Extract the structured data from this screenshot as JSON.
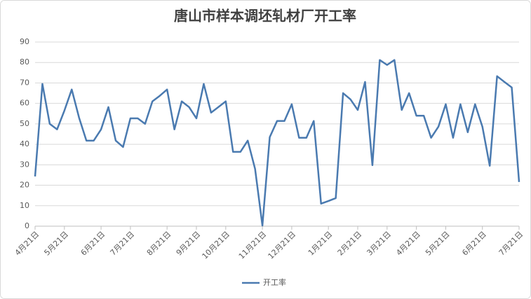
{
  "chart_data": {
    "type": "line",
    "title": "唐山市样本调坯轧材厂开工率",
    "categories": [
      "4月21日",
      null,
      null,
      null,
      "5月21日",
      null,
      null,
      null,
      null,
      "6月21日",
      null,
      null,
      null,
      "7月21日",
      null,
      null,
      null,
      null,
      "8月21日",
      null,
      null,
      null,
      "9月21日",
      null,
      null,
      null,
      "10月21日",
      null,
      null,
      null,
      null,
      "11月21日",
      null,
      null,
      null,
      "12月21日",
      null,
      null,
      null,
      null,
      "1月21日",
      null,
      null,
      null,
      "2月21日",
      null,
      null,
      null,
      "3月21日",
      null,
      null,
      null,
      "4月21日",
      null,
      null,
      null,
      "5月21日",
      null,
      null,
      null,
      null,
      "6月21日",
      null,
      null,
      null,
      null,
      "7月21日"
    ],
    "series": [
      {
        "name": "开工率",
        "color": "#4a7ab0",
        "values": [
          24.3,
          69.5,
          50,
          47.3,
          56.5,
          66.8,
          53,
          41.8,
          41.8,
          47.3,
          58.2,
          41.8,
          38.7,
          52.7,
          52.7,
          50,
          61,
          63.7,
          66.8,
          47.3,
          61,
          58.2,
          52.7,
          69.5,
          55.5,
          58.2,
          61,
          36.3,
          36.3,
          41.8,
          28,
          0.3,
          43.5,
          51.4,
          51.4,
          59.6,
          43.2,
          43.2,
          51.4,
          11,
          12.3,
          13.7,
          65,
          62,
          56.8,
          70.5,
          29.8,
          81.2,
          78.8,
          81.2,
          56.8,
          65,
          54,
          54,
          43.2,
          48.6,
          59.6,
          43.2,
          59.6,
          45.9,
          59.6,
          48.6,
          29.5,
          73.3,
          70.5,
          67.8,
          21.6
        ]
      }
    ],
    "ylim": [
      0,
      90
    ],
    "yticks": [
      0,
      10,
      20,
      30,
      40,
      50,
      60,
      70,
      80,
      90
    ],
    "grid": true,
    "legend": "bottom"
  }
}
